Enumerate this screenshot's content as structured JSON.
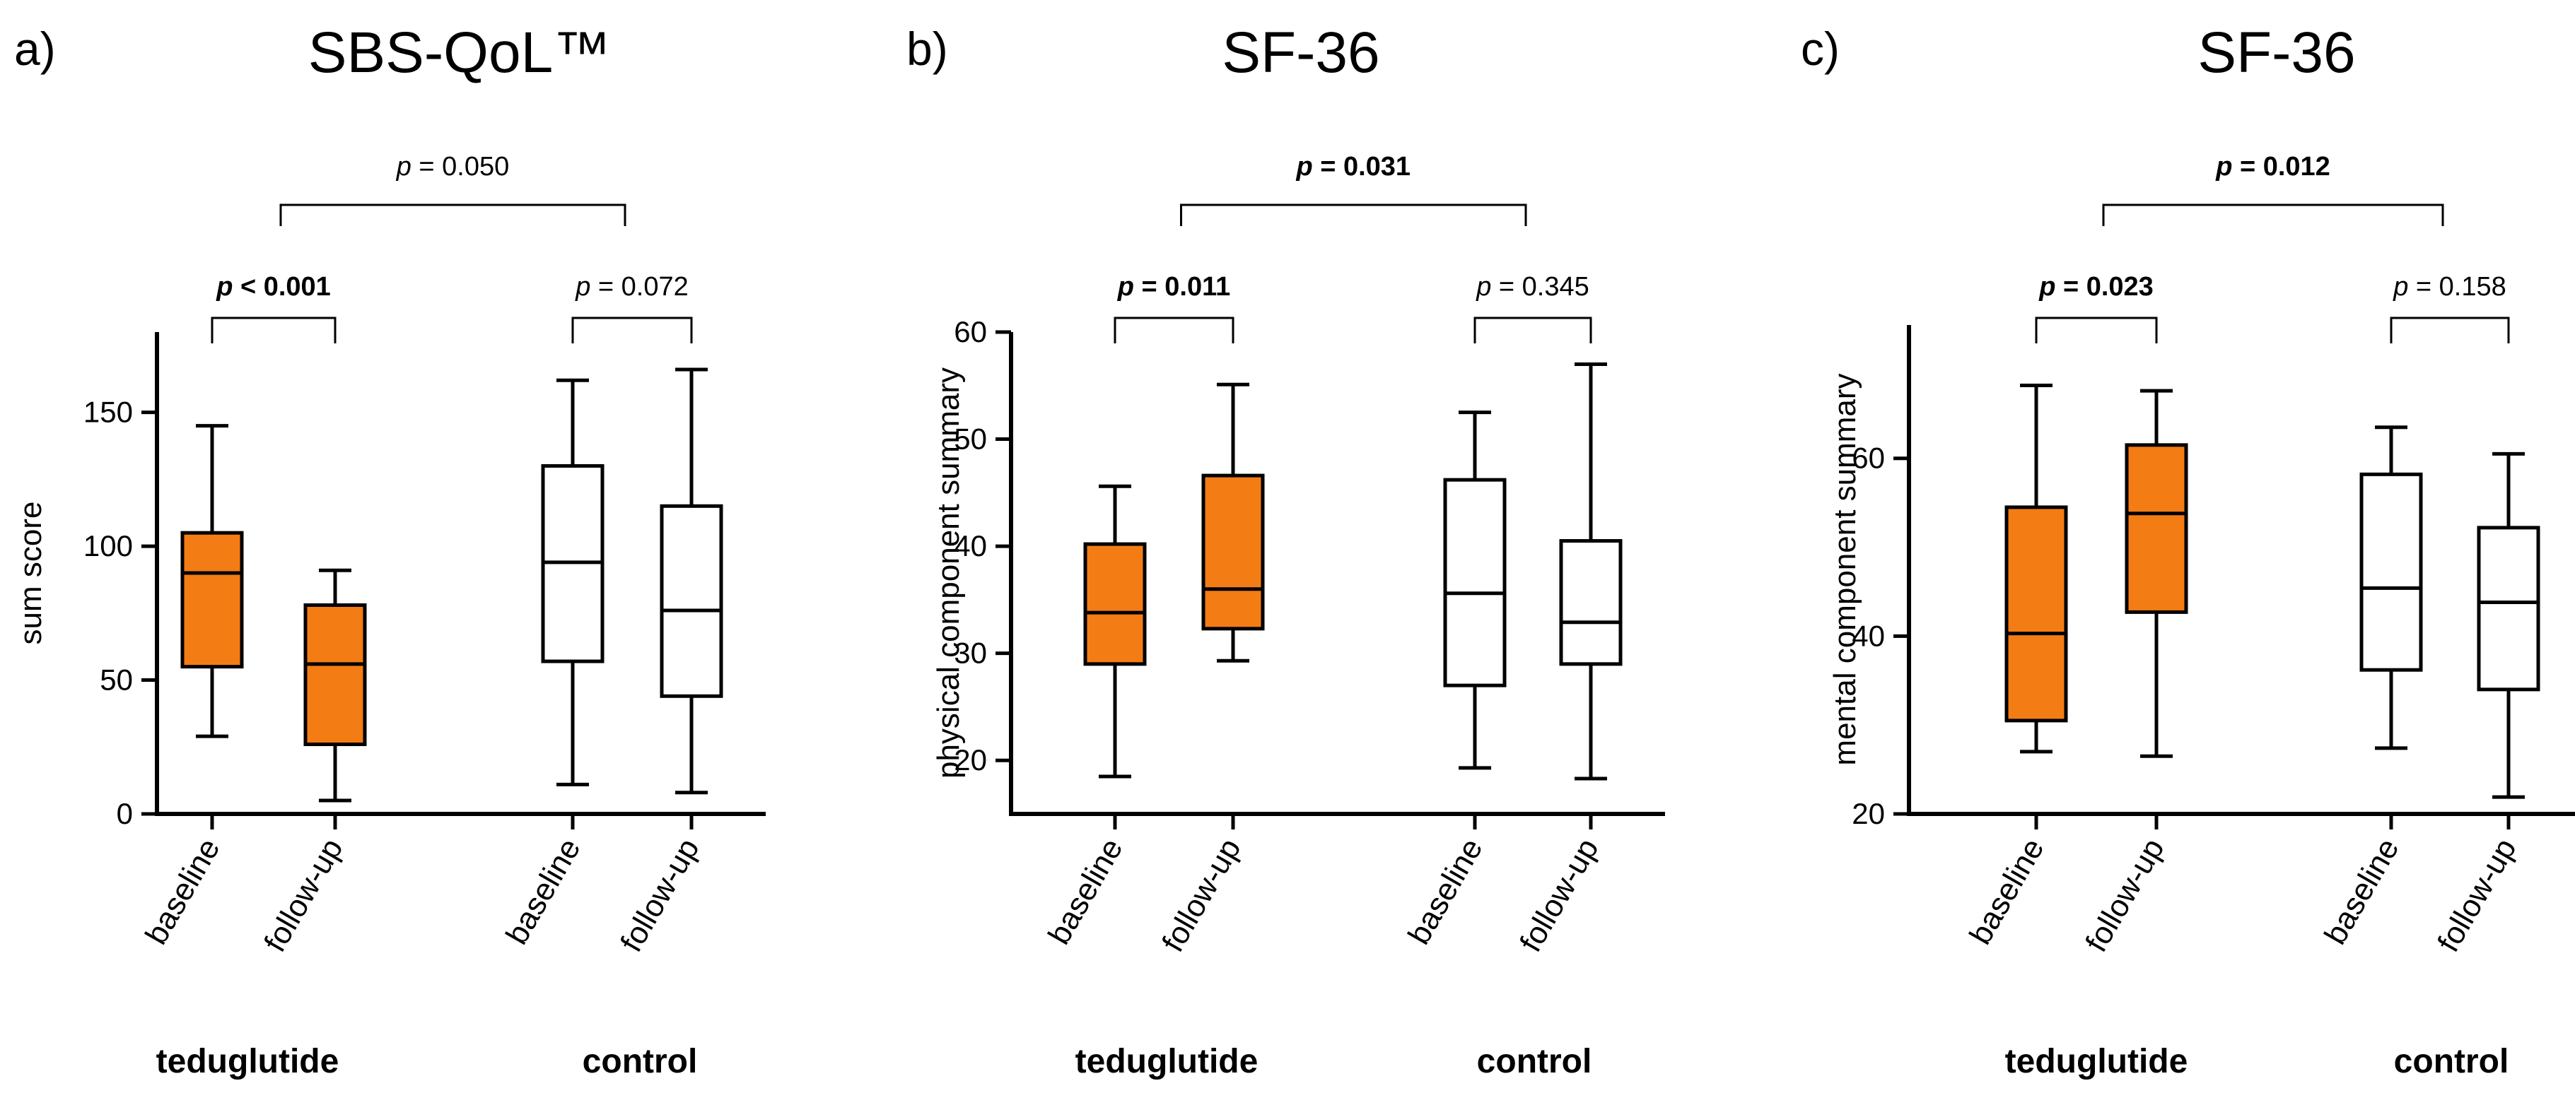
{
  "chart_data": [
    {
      "panel": "a)",
      "type": "box",
      "title": "SBS-QoL™",
      "ylabel": "sum score",
      "ylim": [
        0,
        180
      ],
      "yticks": [
        0,
        50,
        100,
        150
      ],
      "groups": [
        "teduglutide",
        "control"
      ],
      "boxes": [
        {
          "category": "baseline",
          "group": "teduglutide",
          "min": 29,
          "q1": 55,
          "median": 90,
          "q3": 105,
          "max": 145,
          "color": "#f47c14"
        },
        {
          "category": "follow-up",
          "group": "teduglutide",
          "min": 5,
          "q1": 26,
          "median": 56,
          "q3": 78,
          "max": 91,
          "color": "#f47c14"
        },
        {
          "category": "baseline",
          "group": "control",
          "min": 11,
          "q1": 57,
          "median": 94,
          "q3": 130,
          "max": 162,
          "color": "#ffffff"
        },
        {
          "category": "follow-up",
          "group": "control",
          "min": 8,
          "q1": 44,
          "median": 76,
          "q3": 115,
          "max": 166,
          "color": "#ffffff"
        }
      ],
      "comparisons": [
        {
          "prefix": "p",
          "rest": " < 0.001",
          "bold": true,
          "from": 0,
          "to": 1
        },
        {
          "prefix": "p",
          "rest": " = 0.072",
          "bold": false,
          "from": 2,
          "to": 3
        },
        {
          "prefix": "p",
          "rest": " = 0.050",
          "bold": false,
          "from": "teduglutide",
          "to": "control"
        }
      ]
    },
    {
      "panel": "b)",
      "type": "box",
      "title": "SF-36",
      "ylabel": "physical component summary",
      "ylim": [
        15,
        60
      ],
      "yticks": [
        20,
        30,
        40,
        50,
        60
      ],
      "groups": [
        "teduglutide",
        "control"
      ],
      "boxes": [
        {
          "category": "baseline",
          "group": "teduglutide",
          "min": 18.5,
          "q1": 29,
          "median": 33.8,
          "q3": 40.2,
          "max": 45.6,
          "color": "#f47c14"
        },
        {
          "category": "follow-up",
          "group": "teduglutide",
          "min": 29.3,
          "q1": 32.3,
          "median": 36,
          "q3": 46.6,
          "max": 55.1,
          "color": "#f47c14"
        },
        {
          "category": "baseline",
          "group": "control",
          "min": 19.3,
          "q1": 27,
          "median": 35.6,
          "q3": 46.2,
          "max": 52.5,
          "color": "#ffffff"
        },
        {
          "category": "follow-up",
          "group": "control",
          "min": 18.3,
          "q1": 29,
          "median": 32.9,
          "q3": 40.5,
          "max": 57,
          "color": "#ffffff"
        }
      ],
      "comparisons": [
        {
          "prefix": "p",
          "rest": " = 0.011",
          "bold": true,
          "from": 0,
          "to": 1
        },
        {
          "prefix": "p",
          "rest": " = 0.345",
          "bold": false,
          "from": 2,
          "to": 3
        },
        {
          "prefix": "p",
          "rest": " = 0.031",
          "bold": true,
          "from": "teduglutide",
          "to": "control"
        }
      ]
    },
    {
      "panel": "c)",
      "type": "box",
      "title": "SF-36",
      "ylabel": "mental component summary",
      "ylim": [
        20,
        75
      ],
      "yticks": [
        20,
        40,
        60
      ],
      "groups": [
        "teduglutide",
        "control"
      ],
      "boxes": [
        {
          "category": "baseline",
          "group": "teduglutide",
          "min": 27,
          "q1": 30.5,
          "median": 40.3,
          "q3": 54.5,
          "max": 68.2,
          "color": "#f47c14"
        },
        {
          "category": "follow-up",
          "group": "teduglutide",
          "min": 26.5,
          "q1": 42.7,
          "median": 53.8,
          "q3": 61.5,
          "max": 67.6,
          "color": "#f47c14"
        },
        {
          "category": "baseline",
          "group": "control",
          "min": 27.4,
          "q1": 36.2,
          "median": 45.4,
          "q3": 58.2,
          "max": 63.5,
          "color": "#ffffff"
        },
        {
          "category": "follow-up",
          "group": "control",
          "min": 21.9,
          "q1": 34,
          "median": 43.8,
          "q3": 52.2,
          "max": 60.5,
          "color": "#ffffff"
        }
      ],
      "comparisons": [
        {
          "prefix": "p",
          "rest": " = 0.023",
          "bold": true,
          "from": 0,
          "to": 1
        },
        {
          "prefix": "p",
          "rest": " = 0.158",
          "bold": false,
          "from": 2,
          "to": 3
        },
        {
          "prefix": "p",
          "rest": " = 0.012",
          "bold": true,
          "from": "teduglutide",
          "to": "control"
        }
      ]
    }
  ]
}
